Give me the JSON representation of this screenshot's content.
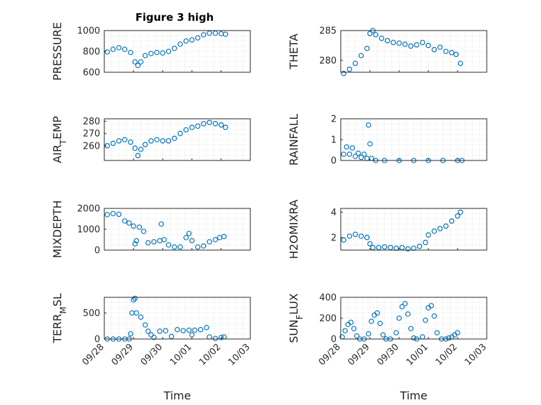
{
  "figure": {
    "title": "Figure 3 high"
  },
  "colors": {
    "marker": "#0072BD",
    "axis": "#262626",
    "grid": "#d9d9d9",
    "background": "#ffffff"
  },
  "chart_data": [
    {
      "type": "scatter",
      "ylabel": "PRESSURE",
      "xlabel": "",
      "title": "Figure 3 high",
      "xlim": [
        "09/28",
        "10/03"
      ],
      "ylim": [
        600,
        1000
      ],
      "yticks": [
        600,
        800,
        1000
      ],
      "grid": "on (major + minor, dotted)",
      "points": [
        [
          0.1,
          795
        ],
        [
          0.3,
          820
        ],
        [
          0.5,
          835
        ],
        [
          0.7,
          820
        ],
        [
          0.9,
          790
        ],
        [
          1.05,
          700
        ],
        [
          1.15,
          665
        ],
        [
          1.25,
          700
        ],
        [
          1.4,
          760
        ],
        [
          1.6,
          780
        ],
        [
          1.8,
          790
        ],
        [
          2.0,
          785
        ],
        [
          2.2,
          800
        ],
        [
          2.4,
          830
        ],
        [
          2.6,
          870
        ],
        [
          2.8,
          900
        ],
        [
          3.0,
          910
        ],
        [
          3.2,
          930
        ],
        [
          3.4,
          960
        ],
        [
          3.6,
          975
        ],
        [
          3.8,
          975
        ],
        [
          4.0,
          970
        ],
        [
          4.15,
          965
        ]
      ]
    },
    {
      "type": "scatter",
      "ylabel": "THETA",
      "xlabel": "",
      "xlim": [
        "09/28",
        "10/03"
      ],
      "ylim": [
        278,
        285
      ],
      "yticks": [
        280,
        285
      ],
      "grid": "on (major + minor, dotted)",
      "points": [
        [
          0.1,
          277.8
        ],
        [
          0.3,
          278.5
        ],
        [
          0.5,
          279.5
        ],
        [
          0.7,
          280.8
        ],
        [
          0.9,
          282
        ],
        [
          1.0,
          284.5
        ],
        [
          1.1,
          285
        ],
        [
          1.2,
          284.3
        ],
        [
          1.4,
          283.7
        ],
        [
          1.6,
          283.3
        ],
        [
          1.8,
          283
        ],
        [
          2.0,
          282.9
        ],
        [
          2.2,
          282.7
        ],
        [
          2.4,
          282.4
        ],
        [
          2.6,
          282.6
        ],
        [
          2.8,
          283
        ],
        [
          3.0,
          282.5
        ],
        [
          3.2,
          281.8
        ],
        [
          3.4,
          282.2
        ],
        [
          3.6,
          281.5
        ],
        [
          3.8,
          281.3
        ],
        [
          3.95,
          281
        ],
        [
          4.1,
          279.5
        ]
      ]
    },
    {
      "type": "scatter",
      "ylabel": "AIR_TEMP",
      "xlabel": "",
      "xlim": [
        "09/28",
        "10/03"
      ],
      "ylim": [
        248,
        282
      ],
      "yticks": [
        260,
        270,
        280
      ],
      "grid": "on (major + minor, dotted)",
      "points": [
        [
          0.1,
          260
        ],
        [
          0.3,
          262
        ],
        [
          0.5,
          264
        ],
        [
          0.7,
          265
        ],
        [
          0.9,
          263
        ],
        [
          1.05,
          258
        ],
        [
          1.15,
          252
        ],
        [
          1.25,
          257
        ],
        [
          1.4,
          261
        ],
        [
          1.6,
          264
        ],
        [
          1.8,
          265
        ],
        [
          2.0,
          264
        ],
        [
          2.2,
          264
        ],
        [
          2.4,
          266
        ],
        [
          2.6,
          270
        ],
        [
          2.8,
          273
        ],
        [
          3.0,
          275
        ],
        [
          3.2,
          276
        ],
        [
          3.4,
          278
        ],
        [
          3.6,
          279
        ],
        [
          3.8,
          278
        ],
        [
          4.0,
          277
        ],
        [
          4.15,
          275
        ]
      ]
    },
    {
      "type": "scatter",
      "ylabel": "RAINFALL",
      "xlabel": "",
      "xlim": [
        "09/28",
        "10/03"
      ],
      "ylim": [
        0,
        2
      ],
      "yticks": [
        0,
        1,
        2
      ],
      "grid": "on (major + minor, dotted)",
      "points": [
        [
          0.1,
          0.3
        ],
        [
          0.2,
          0.65
        ],
        [
          0.3,
          0.3
        ],
        [
          0.4,
          0.6
        ],
        [
          0.5,
          0.2
        ],
        [
          0.6,
          0.35
        ],
        [
          0.7,
          0.15
        ],
        [
          0.8,
          0.3
        ],
        [
          0.9,
          0.1
        ],
        [
          0.95,
          1.7
        ],
        [
          1.0,
          0.8
        ],
        [
          1.05,
          0.1
        ],
        [
          1.2,
          0
        ],
        [
          1.5,
          0
        ],
        [
          2.0,
          0
        ],
        [
          2.5,
          0
        ],
        [
          3.0,
          0
        ],
        [
          3.5,
          0
        ],
        [
          4.0,
          0
        ],
        [
          4.15,
          0
        ]
      ]
    },
    {
      "type": "scatter",
      "ylabel": "MIXDEPTH",
      "xlabel": "",
      "xlim": [
        "09/28",
        "10/03"
      ],
      "ylim": [
        0,
        2000
      ],
      "yticks": [
        0,
        1000,
        2000
      ],
      "grid": "on (major + minor, dotted)",
      "points": [
        [
          0.1,
          1700
        ],
        [
          0.3,
          1750
        ],
        [
          0.5,
          1720
        ],
        [
          0.7,
          1400
        ],
        [
          0.85,
          1300
        ],
        [
          1.0,
          1150
        ],
        [
          1.05,
          300
        ],
        [
          1.1,
          450
        ],
        [
          1.2,
          1100
        ],
        [
          1.35,
          900
        ],
        [
          1.5,
          350
        ],
        [
          1.7,
          400
        ],
        [
          1.9,
          450
        ],
        [
          1.95,
          1250
        ],
        [
          2.05,
          500
        ],
        [
          2.2,
          250
        ],
        [
          2.4,
          150
        ],
        [
          2.6,
          150
        ],
        [
          2.8,
          600
        ],
        [
          2.9,
          800
        ],
        [
          3.0,
          450
        ],
        [
          3.2,
          150
        ],
        [
          3.4,
          200
        ],
        [
          3.6,
          400
        ],
        [
          3.8,
          500
        ],
        [
          3.95,
          600
        ],
        [
          4.1,
          650
        ]
      ]
    },
    {
      "type": "scatter",
      "ylabel": "H2OMIXRA",
      "xlabel": "",
      "xlim": [
        "09/28",
        "10/03"
      ],
      "ylim": [
        1,
        4.3
      ],
      "yticks": [
        2,
        4
      ],
      "grid": "on (major + minor, dotted)",
      "points": [
        [
          0.1,
          1.8
        ],
        [
          0.3,
          2.1
        ],
        [
          0.5,
          2.25
        ],
        [
          0.7,
          2.1
        ],
        [
          0.9,
          2.0
        ],
        [
          1.0,
          1.5
        ],
        [
          1.1,
          1.2
        ],
        [
          1.3,
          1.2
        ],
        [
          1.5,
          1.25
        ],
        [
          1.7,
          1.2
        ],
        [
          1.9,
          1.15
        ],
        [
          2.1,
          1.2
        ],
        [
          2.3,
          1.1
        ],
        [
          2.5,
          1.15
        ],
        [
          2.7,
          1.3
        ],
        [
          2.9,
          1.6
        ],
        [
          3.0,
          2.2
        ],
        [
          3.2,
          2.5
        ],
        [
          3.4,
          2.7
        ],
        [
          3.6,
          2.9
        ],
        [
          3.8,
          3.3
        ],
        [
          4.0,
          3.7
        ],
        [
          4.1,
          4.0
        ]
      ]
    },
    {
      "type": "scatter",
      "ylabel": "TERR_MSL",
      "xlabel": "Time",
      "xlim": [
        "09/28",
        "10/03"
      ],
      "ylim": [
        0,
        800
      ],
      "yticks": [
        0,
        500
      ],
      "xticks": [
        "09/28",
        "09/29",
        "09/30",
        "10/01",
        "10/02",
        "10/03"
      ],
      "grid": "on (major + minor, dotted)",
      "points": [
        [
          0.1,
          0
        ],
        [
          0.3,
          0
        ],
        [
          0.5,
          0
        ],
        [
          0.7,
          0
        ],
        [
          0.85,
          0
        ],
        [
          0.9,
          100
        ],
        [
          0.95,
          500
        ],
        [
          1.0,
          750
        ],
        [
          1.05,
          780
        ],
        [
          1.1,
          500
        ],
        [
          1.25,
          420
        ],
        [
          1.4,
          270
        ],
        [
          1.5,
          150
        ],
        [
          1.6,
          80
        ],
        [
          1.7,
          30
        ],
        [
          1.9,
          150
        ],
        [
          2.1,
          160
        ],
        [
          2.3,
          50
        ],
        [
          2.5,
          180
        ],
        [
          2.7,
          160
        ],
        [
          2.9,
          170
        ],
        [
          3.0,
          80
        ],
        [
          3.1,
          170
        ],
        [
          3.3,
          180
        ],
        [
          3.5,
          220
        ],
        [
          3.6,
          40
        ],
        [
          3.8,
          10
        ],
        [
          4.0,
          30
        ],
        [
          4.1,
          40
        ]
      ]
    },
    {
      "type": "scatter",
      "ylabel": "SUN_FLUX",
      "xlabel": "Time",
      "xlim": [
        "09/28",
        "10/03"
      ],
      "ylim": [
        0,
        400
      ],
      "yticks": [
        0,
        200,
        400
      ],
      "xticks": [
        "09/28",
        "09/29",
        "09/30",
        "10/01",
        "10/02",
        "10/03"
      ],
      "grid": "on (major + minor, dotted)",
      "points": [
        [
          0.05,
          20
        ],
        [
          0.15,
          80
        ],
        [
          0.25,
          140
        ],
        [
          0.35,
          160
        ],
        [
          0.45,
          100
        ],
        [
          0.55,
          30
        ],
        [
          0.65,
          0
        ],
        [
          0.8,
          0
        ],
        [
          0.95,
          50
        ],
        [
          1.05,
          170
        ],
        [
          1.15,
          230
        ],
        [
          1.25,
          250
        ],
        [
          1.35,
          150
        ],
        [
          1.45,
          40
        ],
        [
          1.55,
          0
        ],
        [
          1.7,
          0
        ],
        [
          1.9,
          60
        ],
        [
          2.0,
          200
        ],
        [
          2.1,
          310
        ],
        [
          2.2,
          340
        ],
        [
          2.3,
          240
        ],
        [
          2.4,
          100
        ],
        [
          2.5,
          10
        ],
        [
          2.6,
          0
        ],
        [
          2.8,
          20
        ],
        [
          2.9,
          180
        ],
        [
          3.0,
          300
        ],
        [
          3.1,
          320
        ],
        [
          3.2,
          220
        ],
        [
          3.3,
          60
        ],
        [
          3.45,
          0
        ],
        [
          3.6,
          0
        ],
        [
          3.7,
          10
        ],
        [
          3.8,
          20
        ],
        [
          3.9,
          40
        ],
        [
          4.0,
          60
        ]
      ]
    }
  ]
}
